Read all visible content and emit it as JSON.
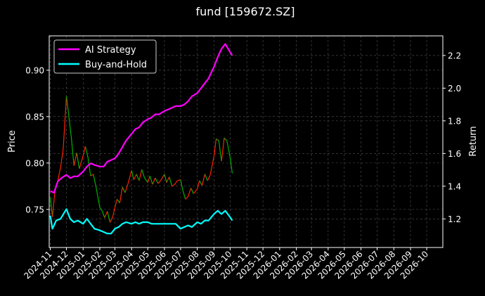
{
  "chart_data": {
    "type": "line",
    "title": "fund [159672.SZ]",
    "y_left_label": "Price",
    "y_right_label": "Return",
    "y_left_ticks": [
      0.75,
      0.8,
      0.85,
      0.9
    ],
    "y_left_tick_labels": [
      "0.75",
      "0.80",
      "0.85",
      "0.90"
    ],
    "y_left_range": [
      0.709,
      0.937
    ],
    "y_right_ticks": [
      1.2,
      1.4,
      1.6,
      1.8,
      2.0,
      2.2
    ],
    "y_right_tick_labels": [
      "1.2",
      "1.4",
      "1.6",
      "1.8",
      "2.0",
      "2.2"
    ],
    "y_right_range": [
      1.025,
      2.32
    ],
    "x_range": [
      "2024-10-30",
      "2026-10-31"
    ],
    "x_ticks": [
      "2024-11",
      "2024-12",
      "2025-01",
      "2025-02",
      "2025-03",
      "2025-04",
      "2025-05",
      "2025-06",
      "2025-07",
      "2025-08",
      "2025-09",
      "2025-10",
      "2025-11",
      "2025-12",
      "2026-01",
      "2026-02",
      "2026-03",
      "2026-04",
      "2026-05",
      "2026-06",
      "2026-07",
      "2026-08",
      "2026-09",
      "2026-10"
    ],
    "grid": true,
    "legend_position": "top-left",
    "colors": {
      "ai": "#ff00ff",
      "bh": "#00ffff",
      "up": "#ff2200",
      "down": "#00b000"
    },
    "series": [
      {
        "name": "AI Strategy",
        "axis": "right",
        "points": [
          [
            "2024-11-01",
            1.37
          ],
          [
            "2024-11-08",
            1.36
          ],
          [
            "2024-11-15",
            1.43
          ],
          [
            "2024-11-22",
            1.45
          ],
          [
            "2024-12-01",
            1.47
          ],
          [
            "2024-12-08",
            1.45
          ],
          [
            "2024-12-15",
            1.46
          ],
          [
            "2024-12-22",
            1.46
          ],
          [
            "2025-01-01",
            1.49
          ],
          [
            "2025-01-08",
            1.52
          ],
          [
            "2025-01-15",
            1.54
          ],
          [
            "2025-01-22",
            1.53
          ],
          [
            "2025-02-01",
            1.52
          ],
          [
            "2025-02-08",
            1.52
          ],
          [
            "2025-02-15",
            1.55
          ],
          [
            "2025-02-22",
            1.56
          ],
          [
            "2025-03-01",
            1.57
          ],
          [
            "2025-03-08",
            1.6
          ],
          [
            "2025-03-15",
            1.64
          ],
          [
            "2025-03-22",
            1.68
          ],
          [
            "2025-04-01",
            1.72
          ],
          [
            "2025-04-08",
            1.75
          ],
          [
            "2025-04-15",
            1.76
          ],
          [
            "2025-04-22",
            1.79
          ],
          [
            "2025-05-01",
            1.81
          ],
          [
            "2025-05-08",
            1.82
          ],
          [
            "2025-05-15",
            1.84
          ],
          [
            "2025-05-22",
            1.84
          ],
          [
            "2025-06-01",
            1.86
          ],
          [
            "2025-06-08",
            1.87
          ],
          [
            "2025-06-15",
            1.88
          ],
          [
            "2025-06-22",
            1.89
          ],
          [
            "2025-07-01",
            1.89
          ],
          [
            "2025-07-08",
            1.9
          ],
          [
            "2025-07-15",
            1.92
          ],
          [
            "2025-07-22",
            1.95
          ],
          [
            "2025-08-01",
            1.97
          ],
          [
            "2025-08-08",
            2.0
          ],
          [
            "2025-08-15",
            2.03
          ],
          [
            "2025-08-22",
            2.06
          ],
          [
            "2025-09-01",
            2.13
          ],
          [
            "2025-09-08",
            2.19
          ],
          [
            "2025-09-15",
            2.24
          ],
          [
            "2025-09-22",
            2.27
          ],
          [
            "2025-10-01",
            2.22
          ],
          [
            "2025-10-05",
            2.2
          ]
        ]
      },
      {
        "name": "Buy-and-Hold",
        "axis": "right",
        "points": [
          [
            "2024-11-01",
            1.22
          ],
          [
            "2024-11-05",
            1.14
          ],
          [
            "2024-11-12",
            1.19
          ],
          [
            "2024-11-20",
            1.2
          ],
          [
            "2024-12-01",
            1.26
          ],
          [
            "2024-12-08",
            1.2
          ],
          [
            "2024-12-15",
            1.18
          ],
          [
            "2024-12-22",
            1.19
          ],
          [
            "2025-01-01",
            1.17
          ],
          [
            "2025-01-08",
            1.2
          ],
          [
            "2025-01-15",
            1.17
          ],
          [
            "2025-01-22",
            1.14
          ],
          [
            "2025-02-01",
            1.13
          ],
          [
            "2025-02-08",
            1.12
          ],
          [
            "2025-02-15",
            1.11
          ],
          [
            "2025-02-22",
            1.11
          ],
          [
            "2025-03-01",
            1.14
          ],
          [
            "2025-03-08",
            1.15
          ],
          [
            "2025-03-15",
            1.17
          ],
          [
            "2025-03-22",
            1.18
          ],
          [
            "2025-04-01",
            1.17
          ],
          [
            "2025-04-08",
            1.18
          ],
          [
            "2025-04-15",
            1.17
          ],
          [
            "2025-04-22",
            1.18
          ],
          [
            "2025-05-01",
            1.18
          ],
          [
            "2025-05-08",
            1.17
          ],
          [
            "2025-05-15",
            1.17
          ],
          [
            "2025-05-22",
            1.17
          ],
          [
            "2025-06-01",
            1.17
          ],
          [
            "2025-06-08",
            1.17
          ],
          [
            "2025-06-15",
            1.17
          ],
          [
            "2025-06-22",
            1.17
          ],
          [
            "2025-07-01",
            1.14
          ],
          [
            "2025-07-08",
            1.15
          ],
          [
            "2025-07-15",
            1.16
          ],
          [
            "2025-07-22",
            1.15
          ],
          [
            "2025-08-01",
            1.18
          ],
          [
            "2025-08-08",
            1.17
          ],
          [
            "2025-08-15",
            1.19
          ],
          [
            "2025-08-22",
            1.19
          ],
          [
            "2025-09-01",
            1.23
          ],
          [
            "2025-09-08",
            1.25
          ],
          [
            "2025-09-15",
            1.23
          ],
          [
            "2025-09-22",
            1.25
          ],
          [
            "2025-10-01",
            1.21
          ],
          [
            "2025-10-05",
            1.19
          ]
        ]
      }
    ],
    "price_series": {
      "name": "Price",
      "axis": "left",
      "points": [
        [
          "2024-11-01",
          0.763
        ],
        [
          "2024-11-05",
          0.742
        ],
        [
          "2024-11-10",
          0.772
        ],
        [
          "2024-11-15",
          0.781
        ],
        [
          "2024-11-20",
          0.795
        ],
        [
          "2024-11-25",
          0.815
        ],
        [
          "2024-12-01",
          0.872
        ],
        [
          "2024-12-05",
          0.853
        ],
        [
          "2024-12-10",
          0.828
        ],
        [
          "2024-12-15",
          0.797
        ],
        [
          "2024-12-20",
          0.811
        ],
        [
          "2024-12-25",
          0.794
        ],
        [
          "2025-01-01",
          0.808
        ],
        [
          "2025-01-05",
          0.818
        ],
        [
          "2025-01-10",
          0.806
        ],
        [
          "2025-01-15",
          0.786
        ],
        [
          "2025-01-20",
          0.788
        ],
        [
          "2025-01-25",
          0.774
        ],
        [
          "2025-02-01",
          0.752
        ],
        [
          "2025-02-05",
          0.749
        ],
        [
          "2025-02-10",
          0.741
        ],
        [
          "2025-02-15",
          0.748
        ],
        [
          "2025-02-20",
          0.736
        ],
        [
          "2025-02-25",
          0.742
        ],
        [
          "2025-03-01",
          0.752
        ],
        [
          "2025-03-05",
          0.761
        ],
        [
          "2025-03-10",
          0.757
        ],
        [
          "2025-03-15",
          0.774
        ],
        [
          "2025-03-20",
          0.768
        ],
        [
          "2025-03-25",
          0.777
        ],
        [
          "2025-04-01",
          0.792
        ],
        [
          "2025-04-05",
          0.782
        ],
        [
          "2025-04-10",
          0.788
        ],
        [
          "2025-04-15",
          0.781
        ],
        [
          "2025-04-20",
          0.793
        ],
        [
          "2025-04-25",
          0.784
        ],
        [
          "2025-05-01",
          0.779
        ],
        [
          "2025-05-05",
          0.786
        ],
        [
          "2025-05-10",
          0.777
        ],
        [
          "2025-05-15",
          0.784
        ],
        [
          "2025-05-20",
          0.778
        ],
        [
          "2025-05-25",
          0.781
        ],
        [
          "2025-06-01",
          0.788
        ],
        [
          "2025-06-05",
          0.779
        ],
        [
          "2025-06-10",
          0.785
        ],
        [
          "2025-06-15",
          0.775
        ],
        [
          "2025-06-20",
          0.777
        ],
        [
          "2025-06-25",
          0.781
        ],
        [
          "2025-07-01",
          0.782
        ],
        [
          "2025-07-05",
          0.771
        ],
        [
          "2025-07-10",
          0.761
        ],
        [
          "2025-07-15",
          0.764
        ],
        [
          "2025-07-20",
          0.773
        ],
        [
          "2025-07-25",
          0.767
        ],
        [
          "2025-08-01",
          0.772
        ],
        [
          "2025-08-05",
          0.781
        ],
        [
          "2025-08-10",
          0.776
        ],
        [
          "2025-08-15",
          0.788
        ],
        [
          "2025-08-20",
          0.781
        ],
        [
          "2025-08-25",
          0.787
        ],
        [
          "2025-09-01",
          0.807
        ],
        [
          "2025-09-05",
          0.826
        ],
        [
          "2025-09-10",
          0.824
        ],
        [
          "2025-09-15",
          0.802
        ],
        [
          "2025-09-20",
          0.827
        ],
        [
          "2025-09-25",
          0.824
        ],
        [
          "2025-10-01",
          0.806
        ],
        [
          "2025-10-05",
          0.789
        ]
      ]
    }
  }
}
